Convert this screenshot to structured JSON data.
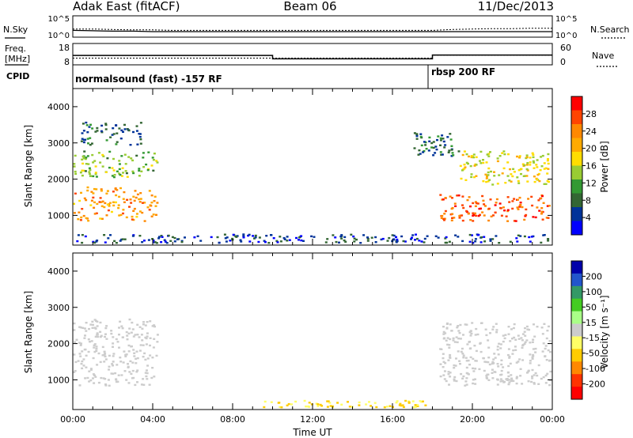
{
  "header": {
    "station": "Adak East (fitACF)",
    "beam": "Beam 06",
    "date": "11/Dec/2013"
  },
  "chart_data": [
    {
      "type": "line",
      "panel": "noise",
      "left_label": "N.Sky",
      "right_label": "N.Search",
      "left_ticks": [
        "10^5",
        "10^0"
      ],
      "right_ticks": [
        "10^5",
        "10^0"
      ],
      "x": [
        "00:00",
        "01:00",
        "02:00",
        "03:00",
        "04:00",
        "05:00",
        "06:00",
        "07:00",
        "08:00",
        "09:00",
        "10:00",
        "11:00",
        "12:00",
        "13:00",
        "14:00",
        "15:00",
        "16:00",
        "17:00",
        "18:00",
        "19:00",
        "20:00",
        "21:00",
        "22:00",
        "23:00",
        "24:00"
      ],
      "series": [
        {
          "values": [
            1.6,
            1.5,
            1.4,
            1.4,
            1.3,
            1.3,
            1.3,
            1.3,
            1.3,
            1.3,
            1.3,
            1.3,
            1.3,
            1.3,
            1.3,
            1.3,
            1.3,
            1.3,
            1.3,
            1.3,
            1.3,
            1.3,
            1.3,
            1.3,
            1.3
          ]
        },
        {
          "values": [
            1.9,
            1.9,
            1.8,
            1.7,
            1.7,
            1.6,
            1.6,
            1.6,
            1.6,
            1.6,
            1.6,
            1.6,
            1.6,
            1.6,
            1.6,
            1.6,
            1.6,
            1.6,
            1.6,
            1.8,
            1.9,
            2.0,
            2.0,
            2.1,
            2.1
          ]
        }
      ]
    },
    {
      "type": "line",
      "panel": "frequency",
      "left_label_1": "Freq.",
      "left_label_2": "[MHz]",
      "right_label": "Nave",
      "left_ticks": [
        "18",
        "8"
      ],
      "right_ticks": [
        "60",
        "0"
      ],
      "segments": [
        {
          "start": "00:00",
          "end": "10:00",
          "freq_mhz": 12.4
        },
        {
          "start": "10:00",
          "end": "18:00",
          "freq_mhz": 10.8
        },
        {
          "start": "18:00",
          "end": "24:00",
          "freq_mhz": 12.6
        }
      ],
      "nave_segments": [
        {
          "start": "00:00",
          "end": "18:00",
          "nave": 19
        },
        {
          "start": "18:00",
          "end": "24:00",
          "nave": 27
        }
      ]
    },
    {
      "type": "table",
      "panel": "cpid",
      "label": "CPID",
      "modes": [
        {
          "start": "00:00",
          "name": "normalsound (fast) -157 RF"
        },
        {
          "start": "18:00",
          "name": "rbsp 200 RF"
        }
      ]
    },
    {
      "type": "heatmap",
      "panel": "power",
      "ylabel": "Slant Range [km]",
      "ylim": [
        180,
        4500
      ],
      "yticks": [
        1000,
        2000,
        3000,
        4000
      ],
      "xlim": [
        "00:00",
        "24:00"
      ],
      "colorbar_label": "Power [dB]",
      "colorbar_ticks": [
        28,
        24,
        20,
        16,
        12,
        8,
        4
      ],
      "colorbar_colors": [
        "#ff0000",
        "#ff4400",
        "#ff8800",
        "#ffaa00",
        "#ffdd00",
        "#99cc33",
        "#339933",
        "#336633",
        "#003399",
        "#0000ff"
      ],
      "regions": [
        {
          "start": "00:00",
          "end": "04:20",
          "range_low": 800,
          "range_high": 1800,
          "power_db": 22
        },
        {
          "start": "00:00",
          "end": "04:20",
          "range_low": 2000,
          "range_high": 2800,
          "power_db": 12
        },
        {
          "start": "00:20",
          "end": "03:30",
          "range_low": 2900,
          "range_high": 3600,
          "power_db": 6
        },
        {
          "start": "18:20",
          "end": "24:00",
          "range_low": 800,
          "range_high": 1600,
          "power_db": 26
        },
        {
          "start": "19:20",
          "end": "24:00",
          "range_low": 1800,
          "range_high": 2800,
          "power_db": 16
        },
        {
          "start": "17:00",
          "end": "19:30",
          "range_low": 2600,
          "range_high": 3300,
          "power_db": 6
        },
        {
          "start": "00:00",
          "end": "24:00",
          "range_low": 200,
          "range_high": 500,
          "power_db": 4
        }
      ]
    },
    {
      "type": "heatmap",
      "panel": "velocity",
      "ylabel": "Slant Range [km]",
      "xlabel": "Time UT",
      "ylim": [
        180,
        4500
      ],
      "yticks": [
        1000,
        2000,
        3000,
        4000
      ],
      "xticks": [
        "00:00",
        "04:00",
        "08:00",
        "12:00",
        "16:00",
        "20:00",
        "00:00"
      ],
      "colorbar_label": "Velocity [m s⁻¹]",
      "colorbar_ticks": [
        "200",
        "100",
        "50",
        "15",
        "-15",
        "-50",
        "-100",
        "-200"
      ],
      "colorbar_colors": [
        "#0000aa",
        "#2255cc",
        "#339966",
        "#44cc22",
        "#aaff88",
        "#cccccc",
        "#ffff66",
        "#ffcc00",
        "#ff8800",
        "#ff3300",
        "#ff0000"
      ],
      "regions": [
        {
          "start": "00:00",
          "end": "04:20",
          "range_low": 800,
          "range_high": 2700,
          "velocity": 0
        },
        {
          "start": "18:20",
          "end": "24:00",
          "range_low": 800,
          "range_high": 2600,
          "velocity": 0
        },
        {
          "start": "09:00",
          "end": "18:00",
          "range_low": 200,
          "range_high": 450,
          "velocity": -60
        }
      ]
    }
  ]
}
